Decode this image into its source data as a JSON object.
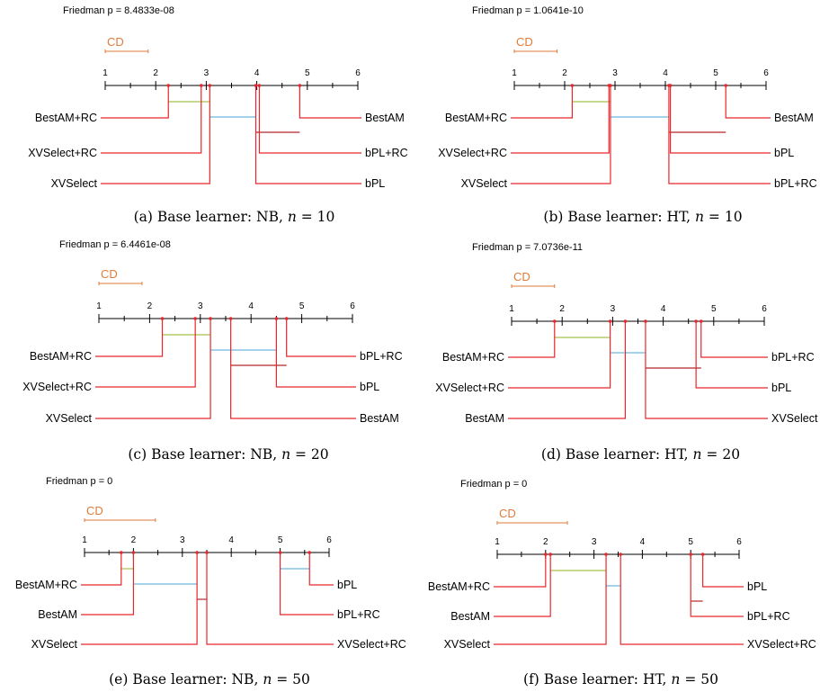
{
  "colors": {
    "axis": "#000000",
    "lead": "#e8262b",
    "cd": "#e07b39",
    "clique_green": "#a3c24a",
    "clique_blue": "#6fb7df",
    "clique_red": "#b3262b",
    "text": "#000000"
  },
  "chart_data": [
    {
      "type": "critical-difference",
      "title": "Friedman p = 8.4833e-08",
      "cd_label": "CD",
      "cd_value": 0.85,
      "axis_range": [
        1,
        6
      ],
      "ticks": [
        "1",
        "2",
        "3",
        "4",
        "5",
        "6"
      ],
      "caption": {
        "letter": "(a)",
        "text": "Base learner: NB,",
        "n": "10"
      },
      "left": [
        {
          "name": "BestAM+RC",
          "rank": 2.25
        },
        {
          "name": "XVSelect+RC",
          "rank": 2.9
        },
        {
          "name": "XVSelect",
          "rank": 3.07
        }
      ],
      "right": [
        {
          "name": "BestAM",
          "rank": 4.85
        },
        {
          "name": "bPL+RC",
          "rank": 4.05
        },
        {
          "name": "bPL",
          "rank": 3.98
        }
      ],
      "cliques": [
        [
          2.25,
          3.07,
          "green"
        ],
        [
          3.07,
          3.98,
          "blue"
        ],
        [
          3.98,
          4.85,
          "red"
        ]
      ]
    },
    {
      "type": "critical-difference",
      "title": "Friedman p = 1.0641e-10",
      "cd_label": "CD",
      "cd_value": 0.85,
      "axis_range": [
        1,
        6
      ],
      "ticks": [
        "1",
        "2",
        "3",
        "4",
        "5",
        "6"
      ],
      "caption": {
        "letter": "(b)",
        "text": "Base learner: HT,",
        "n": "10"
      },
      "left": [
        {
          "name": "BestAM+RC",
          "rank": 2.15
        },
        {
          "name": "XVSelect+RC",
          "rank": 2.88
        },
        {
          "name": "XVSelect",
          "rank": 2.91
        }
      ],
      "right": [
        {
          "name": "BestAM",
          "rank": 5.2
        },
        {
          "name": "bPL",
          "rank": 4.1
        },
        {
          "name": "bPL+RC",
          "rank": 4.07
        }
      ],
      "cliques": [
        [
          2.15,
          2.91,
          "green"
        ],
        [
          2.91,
          4.07,
          "blue"
        ],
        [
          4.07,
          5.2,
          "red"
        ]
      ]
    },
    {
      "type": "critical-difference",
      "title": "Friedman p = 6.4461e-08",
      "cd_label": "CD",
      "cd_value": 0.85,
      "axis_range": [
        1,
        6
      ],
      "ticks": [
        "1",
        "2",
        "3",
        "4",
        "5",
        "6"
      ],
      "caption": {
        "letter": "(c)",
        "text": "Base learner: NB,",
        "n": "20"
      },
      "left": [
        {
          "name": "BestAM+RC",
          "rank": 2.25
        },
        {
          "name": "XVSelect+RC",
          "rank": 2.9
        },
        {
          "name": "XVSelect",
          "rank": 3.2
        }
      ],
      "right": [
        {
          "name": "bPL+RC",
          "rank": 4.7
        },
        {
          "name": "bPL",
          "rank": 4.5
        },
        {
          "name": "BestAM",
          "rank": 3.6
        }
      ],
      "cliques": [
        [
          2.25,
          3.2,
          "green"
        ],
        [
          3.2,
          4.5,
          "blue"
        ],
        [
          3.6,
          4.7,
          "red"
        ]
      ]
    },
    {
      "type": "critical-difference",
      "title": "Friedman p = 7.0736e-11",
      "cd_label": "CD",
      "cd_value": 0.85,
      "axis_range": [
        1,
        6
      ],
      "ticks": [
        "1",
        "2",
        "3",
        "4",
        "5",
        "6"
      ],
      "caption": {
        "letter": "(d)",
        "text": "Base learner: HT,",
        "n": "20"
      },
      "left": [
        {
          "name": "BestAM+RC",
          "rank": 1.85
        },
        {
          "name": "XVSelect+RC",
          "rank": 2.95
        },
        {
          "name": "BestAM",
          "rank": 3.25
        }
      ],
      "right": [
        {
          "name": "bPL+RC",
          "rank": 4.75
        },
        {
          "name": "bPL",
          "rank": 4.65
        },
        {
          "name": "XVSelect",
          "rank": 3.65
        }
      ],
      "cliques": [
        [
          1.85,
          2.95,
          "green"
        ],
        [
          2.95,
          3.65,
          "blue"
        ],
        [
          3.65,
          4.75,
          "red"
        ]
      ]
    },
    {
      "type": "critical-difference",
      "title": "Friedman p = 0",
      "cd_label": "CD",
      "cd_value": 1.45,
      "axis_range": [
        1,
        6
      ],
      "ticks": [
        "1",
        "2",
        "3",
        "4",
        "5",
        "6"
      ],
      "caption": {
        "letter": "(e)",
        "text": "Base learner: NB,",
        "n": "50"
      },
      "left": [
        {
          "name": "BestAM+RC",
          "rank": 1.75
        },
        {
          "name": "BestAM",
          "rank": 2.0
        },
        {
          "name": "XVSelect",
          "rank": 3.3
        }
      ],
      "right": [
        {
          "name": "bPL",
          "rank": 5.6
        },
        {
          "name": "bPL+RC",
          "rank": 5.0
        },
        {
          "name": "XVSelect+RC",
          "rank": 3.5
        }
      ],
      "cliques": [
        [
          1.75,
          2.0,
          "green"
        ],
        [
          2.0,
          3.3,
          "blue"
        ],
        [
          3.3,
          3.5,
          "red"
        ],
        [
          5.0,
          5.6,
          "blue"
        ]
      ]
    },
    {
      "type": "critical-difference",
      "title": "Friedman p = 0",
      "cd_label": "CD",
      "cd_value": 1.45,
      "axis_range": [
        1,
        6
      ],
      "ticks": [
        "1",
        "2",
        "3",
        "4",
        "5",
        "6"
      ],
      "caption": {
        "letter": "(f)",
        "text": "Base learner: HT,",
        "n": "50"
      },
      "left": [
        {
          "name": "BestAM+RC",
          "rank": 2.0
        },
        {
          "name": "BestAM",
          "rank": 2.1
        },
        {
          "name": "XVSelect",
          "rank": 3.25
        }
      ],
      "right": [
        {
          "name": "bPL",
          "rank": 5.25
        },
        {
          "name": "bPL+RC",
          "rank": 5.0
        },
        {
          "name": "XVSelect+RC",
          "rank": 3.55
        }
      ],
      "cliques": [
        [
          2.1,
          3.25,
          "green"
        ],
        [
          3.25,
          3.55,
          "blue"
        ],
        [
          5.0,
          5.25,
          "red"
        ]
      ]
    }
  ]
}
